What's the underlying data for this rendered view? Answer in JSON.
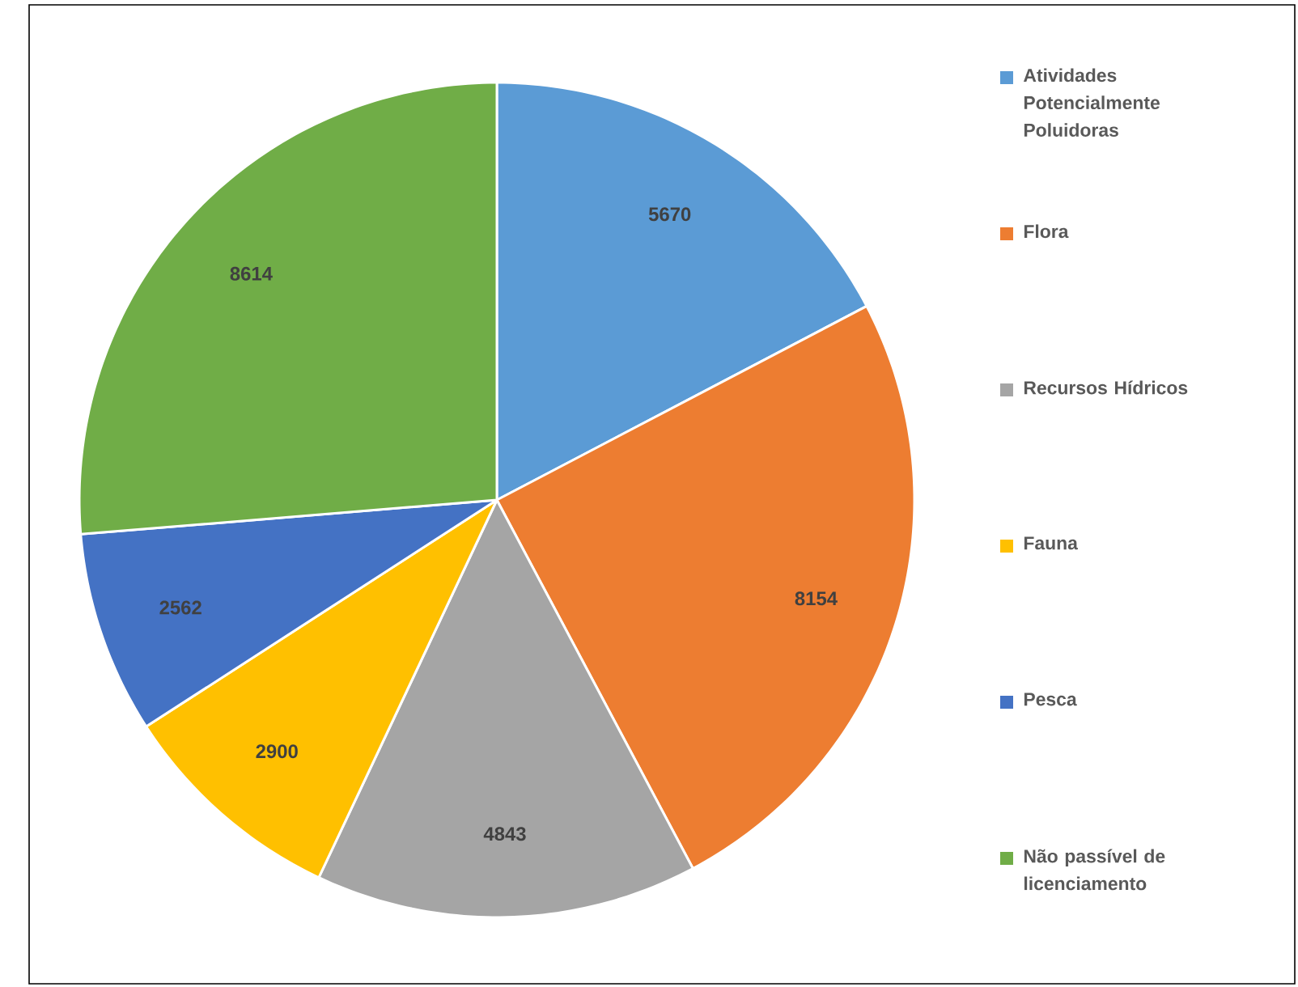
{
  "chart_data": {
    "type": "pie",
    "categories": [
      "Atividades Potencialmente Poluidoras",
      "Flora",
      "Recursos Hídricos",
      "Fauna",
      "Pesca",
      "Não passível de licenciamento"
    ],
    "values": [
      5670,
      8154,
      4843,
      2900,
      2562,
      8614
    ],
    "colors": [
      "#5b9bd5",
      "#ed7d31",
      "#a5a5a5",
      "#ffc000",
      "#4472c4",
      "#70ad47"
    ],
    "data_labels": true,
    "legend": "right"
  }
}
